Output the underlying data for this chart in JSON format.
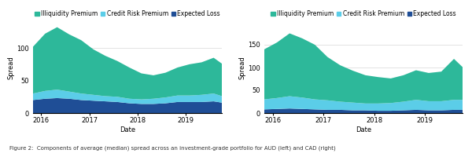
{
  "left": {
    "dates": [
      2015.83,
      2016.08,
      2016.33,
      2016.58,
      2016.83,
      2017.08,
      2017.33,
      2017.58,
      2017.83,
      2018.08,
      2018.33,
      2018.58,
      2018.83,
      2019.08,
      2019.33,
      2019.58,
      2019.75
    ],
    "illiquidity": [
      72,
      88,
      96,
      88,
      82,
      70,
      62,
      55,
      48,
      40,
      36,
      38,
      43,
      48,
      50,
      55,
      50
    ],
    "credit_risk": [
      10,
      12,
      13,
      11,
      10,
      9,
      8,
      8,
      7,
      7,
      8,
      9,
      10,
      10,
      11,
      12,
      10
    ],
    "expected_loss": [
      20,
      22,
      23,
      22,
      20,
      19,
      18,
      17,
      15,
      14,
      14,
      15,
      17,
      17,
      17,
      18,
      16
    ],
    "ylabel": "Spread",
    "xlabel": "Date",
    "ylim": [
      0,
      140
    ],
    "yticks": [
      0,
      50,
      100
    ],
    "xticks": [
      2016,
      2017,
      2018,
      2019
    ]
  },
  "right": {
    "dates": [
      2015.83,
      2016.08,
      2016.33,
      2016.58,
      2016.83,
      2017.08,
      2017.33,
      2017.58,
      2017.83,
      2018.08,
      2018.33,
      2018.58,
      2018.83,
      2019.08,
      2019.33,
      2019.58,
      2019.75
    ],
    "illiquidity": [
      110,
      122,
      138,
      130,
      120,
      95,
      80,
      70,
      62,
      58,
      54,
      58,
      65,
      62,
      65,
      90,
      72
    ],
    "credit_risk": [
      22,
      24,
      27,
      25,
      22,
      21,
      18,
      17,
      15,
      16,
      17,
      19,
      22,
      20,
      20,
      22,
      22
    ],
    "expected_loss": [
      8,
      9,
      10,
      9,
      8,
      7,
      7,
      6,
      6,
      5,
      5,
      6,
      7,
      6,
      6,
      7,
      7
    ],
    "ylabel": "Spread",
    "xlabel": "Date",
    "ylim": [
      0,
      200
    ],
    "yticks": [
      0,
      50,
      100,
      150
    ],
    "xticks": [
      2016,
      2017,
      2018,
      2019
    ]
  },
  "colors": {
    "illiquidity": "#2db89a",
    "credit_risk": "#5bcde8",
    "expected_loss": "#1f4e96"
  },
  "legend_labels": [
    "Illiquidity Premium",
    "Credit Risk Premium",
    "Expected Loss"
  ],
  "caption": "Figure 2:  Components of average (median) spread across an investment-grade portfolio for AUD (left) and CAD (right)",
  "bg_color": "#ffffff",
  "grid_color": "#d8d8d8",
  "font_size": 6,
  "legend_font_size": 5.5
}
